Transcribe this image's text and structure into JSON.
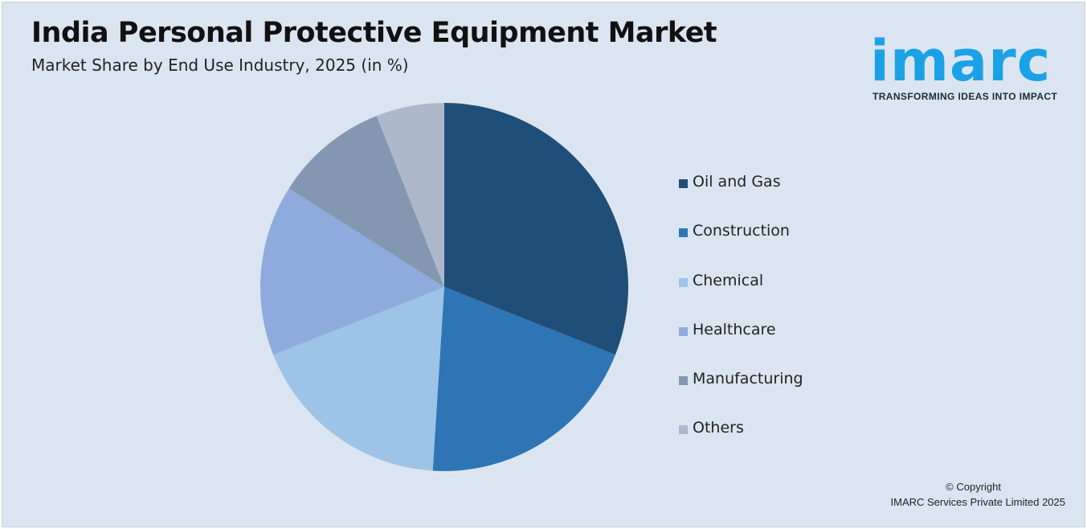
{
  "header": {
    "title": "India Personal Protective Equipment Market",
    "subtitle": "Market Share by End Use Industry, 2025 (in %)"
  },
  "logo": {
    "text": "imarc",
    "tagline": "TRANSFORMING IDEAS INTO IMPACT",
    "color": "#1ba1e6"
  },
  "footer": {
    "copyright": "© Copyright",
    "company": "IMARC Services Private Limited 2025"
  },
  "chart_data": {
    "type": "pie",
    "title": "India Personal Protective Equipment Market",
    "subtitle": "Market Share by End Use Industry, 2025 (in %)",
    "legend_position": "right",
    "categories": [
      "Oil and Gas",
      "Construction",
      "Chemical",
      "Healthcare",
      "Manufacturing",
      "Others"
    ],
    "values": [
      31,
      20,
      18,
      15,
      10,
      6
    ],
    "colors": [
      "#1f4e79",
      "#2e75b6",
      "#9dc3e6",
      "#8faadc",
      "#8497b0",
      "#adb9ca"
    ]
  }
}
